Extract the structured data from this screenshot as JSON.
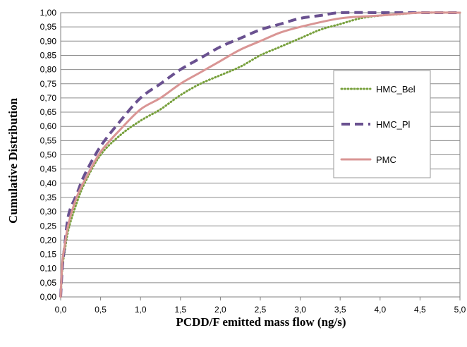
{
  "chart_data": {
    "type": "line",
    "title": "",
    "xlabel": "PCDD/F emitted mass flow  (ng/s)",
    "ylabel": "Cumulative Distribution",
    "xlim": [
      0,
      5
    ],
    "ylim": [
      0,
      1
    ],
    "x_ticks": [
      "0,0",
      "0,5",
      "1,0",
      "1,5",
      "2,0",
      "2,5",
      "3,0",
      "3,5",
      "4,0",
      "4,5",
      "5,0"
    ],
    "y_ticks": [
      "0,00",
      "0,05",
      "0,10",
      "0,15",
      "0,20",
      "0,25",
      "0,30",
      "0,35",
      "0,40",
      "0,45",
      "0,50",
      "0,55",
      "0,60",
      "0,65",
      "0,70",
      "0,75",
      "0,80",
      "0,85",
      "0,90",
      "0,95",
      "1,00"
    ],
    "grid": "horizontal",
    "legend_position": "right",
    "series": [
      {
        "name": "HMC_Bel",
        "color": "#77a03c",
        "style": "dotted",
        "x": [
          0,
          0.02,
          0.05,
          0.1,
          0.2,
          0.3,
          0.5,
          0.75,
          1.0,
          1.25,
          1.5,
          1.75,
          2.0,
          2.25,
          2.5,
          2.75,
          3.0,
          3.25,
          3.5,
          3.75,
          4.0,
          4.25,
          4.5,
          5.0
        ],
        "y": [
          0,
          0.1,
          0.16,
          0.24,
          0.33,
          0.4,
          0.5,
          0.57,
          0.62,
          0.66,
          0.71,
          0.75,
          0.78,
          0.81,
          0.85,
          0.88,
          0.91,
          0.94,
          0.96,
          0.98,
          0.99,
          0.995,
          1.0,
          1.0
        ]
      },
      {
        "name": "HMC_Pl",
        "color": "#6a5190",
        "style": "dashed",
        "x": [
          0,
          0.02,
          0.05,
          0.1,
          0.2,
          0.3,
          0.5,
          0.75,
          1.0,
          1.25,
          1.5,
          1.75,
          2.0,
          2.25,
          2.5,
          2.75,
          3.0,
          3.25,
          3.5,
          4.0,
          4.5,
          5.0
        ],
        "y": [
          0,
          0.1,
          0.18,
          0.29,
          0.36,
          0.43,
          0.53,
          0.62,
          0.7,
          0.75,
          0.8,
          0.84,
          0.88,
          0.91,
          0.94,
          0.96,
          0.98,
          0.99,
          1.0,
          1.0,
          1.0,
          1.0
        ]
      },
      {
        "name": "PMC",
        "color": "#d99594",
        "style": "solid",
        "x": [
          0,
          0.02,
          0.05,
          0.1,
          0.2,
          0.3,
          0.5,
          0.75,
          1.0,
          1.25,
          1.5,
          1.75,
          2.0,
          2.25,
          2.5,
          2.75,
          3.0,
          3.5,
          4.0,
          4.5,
          5.0
        ],
        "y": [
          0,
          0.12,
          0.18,
          0.26,
          0.35,
          0.41,
          0.51,
          0.59,
          0.66,
          0.7,
          0.75,
          0.79,
          0.83,
          0.87,
          0.9,
          0.93,
          0.95,
          0.98,
          0.99,
          1.0,
          1.0
        ]
      }
    ]
  }
}
